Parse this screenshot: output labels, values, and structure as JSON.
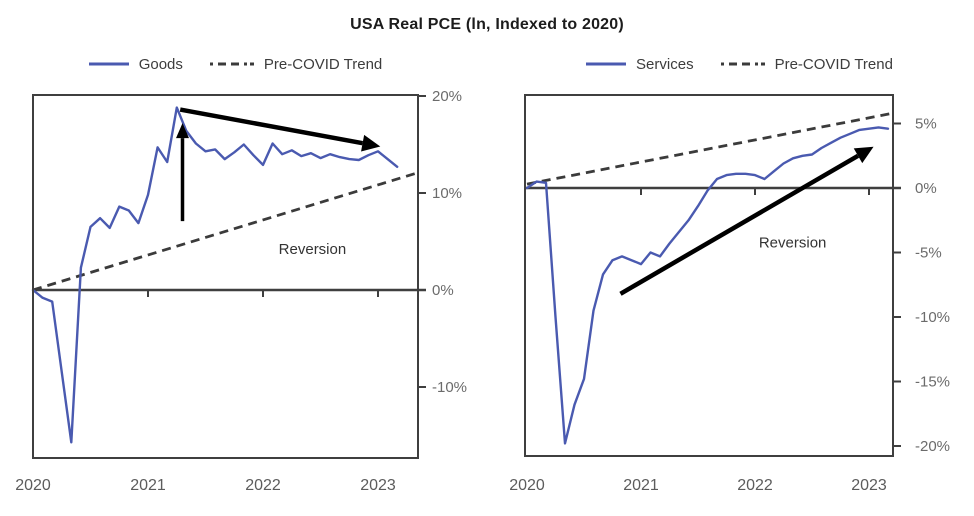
{
  "title": "USA Real PCE (ln, Indexed to 2020)",
  "colors": {
    "series_line": "#4a5ab0",
    "trend_line": "#3b3b3b",
    "axis": "#3f3f3f",
    "tick_label": "#6b6b6b",
    "year_label": "#5c5c5c",
    "annotation": "#000000",
    "annotation_text": "#333333"
  },
  "chart_data": [
    {
      "type": "line",
      "panel": "left",
      "legend": {
        "series": "Goods",
        "trend": "Pre-COVID Trend"
      },
      "x_ticks": [
        2020,
        2021,
        2022,
        2023
      ],
      "x_tick_labels": [
        "2020",
        "2021",
        "2022",
        "2023"
      ],
      "xlim": [
        2020,
        2023.35
      ],
      "y_ticks": [
        20,
        10,
        0,
        -10
      ],
      "y_tick_labels": [
        "20%",
        "10%",
        "0%",
        "-10%"
      ],
      "ylim": [
        -17.3,
        20.1
      ],
      "grid": false,
      "legend_position": "top",
      "series": {
        "name": "Goods",
        "start_year": 2020,
        "interval": "monthly",
        "values_pct": [
          0.0,
          -0.8,
          -1.2,
          -8.5,
          -15.7,
          2.3,
          6.5,
          7.4,
          6.4,
          8.6,
          8.2,
          6.9,
          9.8,
          14.7,
          13.2,
          18.8,
          16.4,
          15.1,
          14.3,
          14.5,
          13.5,
          14.2,
          15.0,
          13.9,
          12.9,
          15.1,
          14.0,
          14.4,
          13.8,
          14.1,
          13.6,
          14.0,
          13.7,
          13.5,
          13.4,
          13.9,
          14.3,
          13.5,
          12.7
        ]
      },
      "trend": {
        "name": "Pre-COVID Trend",
        "x": [
          2020.0,
          2023.35
        ],
        "values_pct": [
          0.0,
          12.1
        ]
      },
      "annotations": {
        "reversion_label": "Reversion",
        "reversion_label_pos": [
          2022.43,
          3.7
        ],
        "arrows": [
          {
            "name": "surge-arrow",
            "from": [
              2021.3,
              7.1
            ],
            "to": [
              2021.3,
              17.2
            ],
            "style": "thin"
          },
          {
            "name": "reversion-arrow",
            "from": [
              2021.28,
              18.6
            ],
            "to": [
              2023.02,
              14.8
            ],
            "style": "thick"
          }
        ]
      }
    },
    {
      "type": "line",
      "panel": "right",
      "legend": {
        "series": "Services",
        "trend": "Pre-COVID Trend"
      },
      "x_ticks": [
        2020,
        2021,
        2022,
        2023
      ],
      "x_tick_labels": [
        "2020",
        "2021",
        "2022",
        "2023"
      ],
      "xlim": [
        2020,
        2023.21
      ],
      "y_ticks": [
        5,
        0,
        -5,
        -10,
        -15,
        -20
      ],
      "y_tick_labels": [
        "5%",
        "0%",
        "-5%",
        "-10%",
        "-15%",
        "-20%"
      ],
      "ylim": [
        -20.8,
        7.2
      ],
      "grid": false,
      "legend_position": "top",
      "series": {
        "name": "Services",
        "start_year": 2020,
        "interval": "monthly",
        "values_pct": [
          0.0,
          0.5,
          0.4,
          -10.0,
          -19.8,
          -16.8,
          -14.8,
          -9.5,
          -6.7,
          -5.6,
          -5.3,
          -5.6,
          -5.9,
          -5.0,
          -5.3,
          -4.3,
          -3.4,
          -2.5,
          -1.4,
          -0.2,
          0.7,
          1.0,
          1.1,
          1.1,
          1.0,
          0.7,
          1.3,
          1.9,
          2.3,
          2.5,
          2.6,
          3.1,
          3.5,
          3.9,
          4.2,
          4.5,
          4.6,
          4.7,
          4.6
        ]
      },
      "trend": {
        "name": "Pre-COVID Trend",
        "x": [
          2020.0,
          2023.21
        ],
        "values_pct": [
          0.3,
          5.8
        ]
      },
      "annotations": {
        "reversion_label": "Reversion",
        "reversion_label_pos": [
          2022.33,
          -4.6
        ],
        "arrows": [
          {
            "name": "reversion-arrow",
            "from": [
              2020.82,
              -8.2
            ],
            "to": [
              2023.04,
              3.2
            ],
            "style": "thick"
          }
        ]
      }
    }
  ]
}
